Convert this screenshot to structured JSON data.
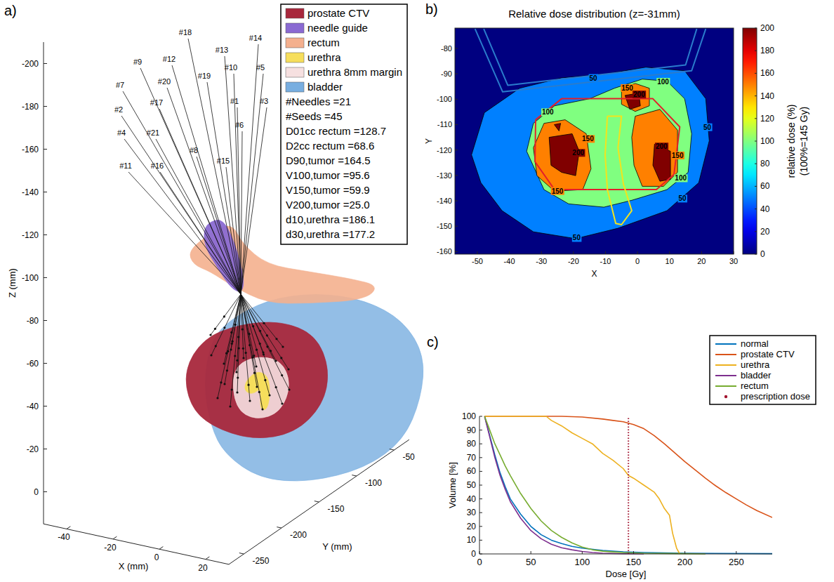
{
  "chart_data": [
    {
      "type": "3d",
      "panel": "a)",
      "xlabel": "X (mm)",
      "ylabel": "Y (mm)",
      "zlabel": "Z (mm)",
      "xlim": [
        -50,
        30
      ],
      "ylim": [
        -270,
        -30
      ],
      "zlim": [
        -210,
        15
      ],
      "xticks": [
        -40,
        -20,
        0,
        20
      ],
      "yticks": [
        -250,
        -200,
        -150,
        -100,
        -50
      ],
      "zticks": [
        -200,
        -180,
        -160,
        -140,
        -120,
        -100,
        -80,
        -60,
        -40,
        -20,
        0
      ],
      "series": [
        {
          "name": "prostate CTV",
          "color": "#a8283c"
        },
        {
          "name": "needle guide",
          "color": "#8a6ad2"
        },
        {
          "name": "rectum",
          "color": "#f4b08e"
        },
        {
          "name": "urethra",
          "color": "#f6de5c"
        },
        {
          "name": "urethra 8mm margin",
          "color": "#f6e0e0"
        },
        {
          "name": "bladder",
          "color": "#78aee0"
        }
      ],
      "annotations": [
        "#Needles =21",
        "#Seeds =45",
        "D01cc rectum =128.7",
        "D2cc rectum =68.6",
        "D90,tumor =164.5",
        "V100,tumor =95.6",
        "V150,tumor =59.9",
        "V200,tumor =25.0",
        "d10,urethra =186.1",
        "d30,urethra =177.2"
      ],
      "needle_labels": [
        "#1",
        "#2",
        "#3",
        "#4",
        "#5",
        "#6",
        "#7",
        "#8",
        "#9",
        "#10",
        "#11",
        "#12",
        "#13",
        "#14",
        "#15",
        "#16",
        "#17",
        "#18",
        "#19",
        "#20",
        "#21"
      ]
    },
    {
      "type": "contour",
      "panel": "b)",
      "title": "Relative dose distribution (z=-31mm)",
      "xlabel": "X",
      "ylabel": "Y",
      "xlim": [
        -57,
        30
      ],
      "ylim": [
        -161,
        -72
      ],
      "xticks": [
        -50,
        -40,
        -30,
        -20,
        -10,
        0,
        10,
        20,
        30
      ],
      "yticks": [
        -80,
        -90,
        -100,
        -110,
        -120,
        -130,
        -140,
        -150,
        -160
      ],
      "contours": [
        {
          "level": 50,
          "polygons": [
            [
              [
                -51.8,
                -121.9
              ],
              [
                -47.8,
                -105.3
              ],
              [
                -36.8,
                -95.7
              ],
              [
                -23.7,
                -91.6
              ],
              [
                -10.5,
                -90.2
              ],
              [
                2.6,
                -87.4
              ],
              [
                14.7,
                -88.8
              ],
              [
                21.3,
                -99.8
              ],
              [
                22.4,
                -116.4
              ],
              [
                19.1,
                -132.9
              ],
              [
                9.2,
                -143.9
              ],
              [
                -6.1,
                -150.8
              ],
              [
                -19.3,
                -154.9
              ],
              [
                -32.5,
                -152.2
              ],
              [
                -42.3,
                -143.9
              ],
              [
                -48.9,
                -132.9
              ]
            ]
          ],
          "label_at": [
            [
              -13.8,
              -91.5
            ],
            [
              21.8,
              -110.9
            ],
            [
              14,
              -139
            ],
            [
              -19,
              -154.5
            ]
          ]
        },
        {
          "level": 100,
          "polygons": [
            [
              [
                -34.6,
                -120.5
              ],
              [
                -32.5,
                -109.5
              ],
              [
                -25.9,
                -102.6
              ],
              [
                -14.9,
                -99.8
              ],
              [
                -7.2,
                -95.7
              ],
              [
                1.5,
                -92.1
              ],
              [
                9.2,
                -92.9
              ],
              [
                14.7,
                -99.8
              ],
              [
                16.9,
                -113.6
              ],
              [
                15.8,
                -128.8
              ],
              [
                9.2,
                -135.6
              ],
              [
                -1.8,
                -139.8
              ],
              [
                -10.5,
                -142.5
              ],
              [
                -21.5,
                -141.2
              ],
              [
                -29.2,
                -135.6
              ]
            ]
          ],
          "label_at": [
            [
              -28,
              -105
            ],
            [
              8,
              -93
            ],
            [
              13.5,
              -131
            ]
          ]
        },
        {
          "level": 150,
          "polygons": [
            [
              [
                -29.2,
                -109.5
              ],
              [
                -22.6,
                -108.1
              ],
              [
                -16.0,
                -113.6
              ],
              [
                -14.5,
                -127.4
              ],
              [
                -17.1,
                -135.6
              ],
              [
                -25.9,
                -136.2
              ],
              [
                -31.4,
                -130.1
              ],
              [
                -32.5,
                -119.1
              ]
            ],
            [
              [
                -0.7,
                -106.7
              ],
              [
                7.0,
                -104.0
              ],
              [
                12.5,
                -112.2
              ],
              [
                12.5,
                -128.8
              ],
              [
                8.1,
                -134.3
              ],
              [
                1.5,
                -134.3
              ],
              [
                -1.1,
                -126.0
              ],
              [
                -1.8,
                -115.0
              ]
            ],
            [
              [
                -5.0,
                -95.7
              ],
              [
                -0.7,
                -93.8
              ],
              [
                3.7,
                -95.7
              ],
              [
                3.7,
                -102.6
              ],
              [
                -0.7,
                -104.8
              ],
              [
                -5.0,
                -102.0
              ]
            ]
          ],
          "label_at": [
            [
              -15.5,
              -115.5
            ],
            [
              -25,
              -136
            ],
            [
              12.5,
              -122
            ],
            [
              -3.2,
              -95.5
            ]
          ]
        },
        {
          "level": 200,
          "polygons": [
            [
              [
                -27.6,
                -115.0
              ],
              [
                -20.4,
                -113.6
              ],
              [
                -18.2,
                -120.5
              ],
              [
                -19.3,
                -130.1
              ],
              [
                -23.7,
                -128.8
              ],
              [
                -27.0,
                -126.0
              ]
            ],
            [
              [
                -26,
                -110
              ],
              [
                -24,
                -109.5
              ],
              [
                -24.5,
                -112.5
              ]
            ],
            [
              [
                5.3,
                -117.7
              ],
              [
                10.3,
                -120.5
              ],
              [
                10.3,
                -131.5
              ],
              [
                7.0,
                -132.3
              ],
              [
                4.8,
                -126.0
              ]
            ],
            [
              [
                -3.9,
                -98.5
              ],
              [
                0.4,
                -97.6
              ],
              [
                0.9,
                -102.6
              ],
              [
                -2.4,
                -104.0
              ]
            ]
          ],
          "label_at": [
            [
              -18.5,
              -121
            ],
            [
              7.5,
              -118.5
            ],
            [
              0.5,
              -98
            ]
          ]
        }
      ],
      "outlines": [
        {
          "color": "#e3202a",
          "points": [
            [
              -31.8,
              -108.1
            ],
            [
              -23.7,
              -99.8
            ],
            [
              4.8,
              -99.8
            ],
            [
              13.2,
              -110.9
            ],
            [
              11.4,
              -129.6
            ],
            [
              5.9,
              -135.6
            ],
            [
              -25.9,
              -135.6
            ],
            [
              -32,
              -124.6
            ],
            [
              -31.8,
              -108.1
            ]
          ]
        },
        {
          "color": "#f2e41c",
          "points": [
            [
              -9.4,
              -106.7
            ],
            [
              -5,
              -106.7
            ],
            [
              -6.1,
              -119.1
            ],
            [
              -4.4,
              -133.4
            ],
            [
              -1.8,
              -143.9
            ],
            [
              -5,
              -149.4
            ],
            [
              -6.8,
              -148.9
            ],
            [
              -9.4,
              -135.6
            ],
            [
              -10.1,
              -121.9
            ],
            [
              -9.4,
              -106.7
            ]
          ]
        },
        {
          "color": "#2a7ccc",
          "points": [
            [
              -50.7,
              -72.3
            ],
            [
              -42.1,
              -97.1
            ],
            [
              16.9,
              -88.8
            ],
            [
              21.3,
              -72.3
            ]
          ]
        },
        {
          "color": "#2a7ccc",
          "points": [
            [
              -48,
              -72.3
            ],
            [
              -40.5,
              -94.5
            ],
            [
              15,
              -86.5
            ],
            [
              18.5,
              -72.3
            ]
          ]
        }
      ],
      "colorbar": {
        "label": [
          "relative dose (%)",
          "(100%=145 Gy)"
        ],
        "range": [
          0,
          200
        ],
        "ticks": [
          0,
          20,
          40,
          60,
          80,
          100,
          120,
          140,
          160,
          180,
          200
        ]
      }
    },
    {
      "type": "line",
      "panel": "c)",
      "xlabel": "Dose [Gy]",
      "ylabel": "Volume [%]",
      "xlim": [
        0,
        285
      ],
      "ylim": [
        0,
        100
      ],
      "xticks": [
        0,
        50,
        100,
        150,
        200,
        250
      ],
      "yticks": [
        0,
        10,
        20,
        30,
        40,
        50,
        60,
        70,
        80,
        90,
        100
      ],
      "legend": "top-right",
      "series": [
        {
          "name": "normal",
          "color": "#0072bd",
          "x": [
            5,
            10,
            15,
            20,
            25,
            30,
            40,
            50,
            60,
            70,
            80,
            90,
            100,
            120,
            140,
            160,
            200,
            285
          ],
          "values": [
            100,
            86,
            72,
            59,
            49,
            40,
            29,
            20,
            14,
            10,
            7.5,
            5.5,
            4.2,
            2.5,
            1.5,
            1,
            0.5,
            0.2
          ]
        },
        {
          "name": "prostate CTV",
          "color": "#d95319",
          "x": [
            5,
            80,
            100,
            120,
            130,
            140,
            150,
            160,
            170,
            180,
            190,
            200,
            210,
            220,
            230,
            240,
            250,
            260,
            270,
            285
          ],
          "values": [
            100,
            100,
            99.5,
            98,
            97,
            96,
            94,
            91,
            86,
            80,
            73.5,
            67,
            61,
            55,
            49.5,
            44.5,
            40,
            35.5,
            31.5,
            26.5
          ]
        },
        {
          "name": "urethra",
          "color": "#edb120",
          "x": [
            5,
            65,
            70,
            80,
            90,
            100,
            110,
            120,
            130,
            140,
            145,
            150,
            160,
            170,
            175,
            180,
            185,
            188,
            192,
            195
          ],
          "values": [
            100,
            100,
            97,
            93,
            88,
            84,
            80,
            73,
            68,
            62,
            57,
            55,
            50,
            45,
            40,
            33,
            28,
            15,
            4,
            0
          ]
        },
        {
          "name": "bladder",
          "color": "#7e2f8e",
          "x": [
            5,
            10,
            15,
            20,
            25,
            30,
            40,
            50,
            60,
            70,
            80,
            90,
            100,
            110,
            120,
            140,
            160
          ],
          "values": [
            100,
            85,
            70,
            57,
            47,
            38,
            26,
            17,
            11,
            7,
            4.5,
            3,
            1.8,
            1,
            0.5,
            0.1,
            0
          ]
        },
        {
          "name": "rectum",
          "color": "#77ac30",
          "x": [
            5,
            10,
            15,
            20,
            25,
            30,
            40,
            50,
            60,
            70,
            80,
            90,
            100,
            110,
            120,
            130,
            140,
            160,
            200,
            220
          ],
          "values": [
            100,
            90,
            80,
            72,
            64,
            57,
            44,
            33,
            24,
            17,
            12,
            8,
            5,
            3,
            2,
            1.5,
            1,
            0.5,
            0.2,
            0
          ]
        }
      ],
      "prescription": {
        "name": "prescription dose",
        "color": "#a2142f",
        "value": 145
      }
    }
  ]
}
